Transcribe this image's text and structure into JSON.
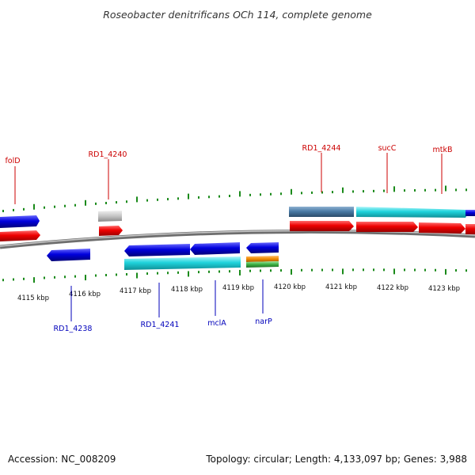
{
  "title": "Roseobacter denitrificans OCh 114, complete genome",
  "ticks": [
    "4115 kbp",
    "4116 kbp",
    "4117 kbp",
    "4118 kbp",
    "4119 kbp",
    "4120 kbp",
    "4121 kbp",
    "4122 kbp",
    "4123 kbp"
  ],
  "gene_labels_forward": [
    "folD",
    "RD1_4240",
    "RD1_4244",
    "sucC",
    "mtkB"
  ],
  "gene_labels_reverse": [
    "RD1_4238",
    "RD1_4241",
    "mclA",
    "narP"
  ],
  "footer": {
    "accession": "Accession: NC_008209",
    "summary": "Topology: circular; Length: 4,133,097 bp; Genes: 3,988"
  },
  "colors": {
    "forward_label": "#cc0000",
    "reverse_label": "#0000bb",
    "cds_red": "#e60000",
    "cds_blue": "#0000cc",
    "gene_cyan": "#22d0d8",
    "gene_steelblue": "#4f7fa8",
    "gene_gray": "#bfbfbf",
    "misc_orange": "#f08a00",
    "misc_green": "#3cb043",
    "tick_green": "#1a8a1a",
    "backbone": "#8a8a8a"
  }
}
